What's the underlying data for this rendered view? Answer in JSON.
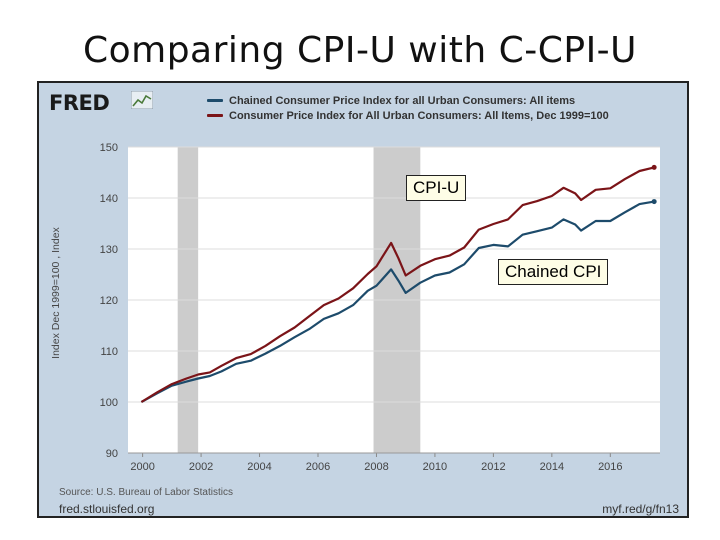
{
  "slide": {
    "title": "Comparing CPI-U with C-CPI-U"
  },
  "fred": {
    "logo_text": "FRED",
    "source": "Source: U.S. Bureau of Labor Statistics",
    "url_left": "fred.stlouisfed.org",
    "url_right": "myf.red/g/fn13"
  },
  "callouts": {
    "cpi_u": "CPI-U",
    "chained": "Chained CPI"
  },
  "colors": {
    "background": "#c5d4e3",
    "plot_bg": "#ffffff",
    "recession": "#cccccc",
    "series_chained": "#1d4b6b",
    "series_cpi": "#7b1418"
  },
  "chart_data": {
    "type": "line",
    "title": "",
    "xlabel": "",
    "ylabel": "Index Dec 1999=100 , Index",
    "xlim": [
      1999.5,
      2017.7
    ],
    "ylim": [
      90,
      150
    ],
    "xticks": [
      2000,
      2002,
      2004,
      2006,
      2008,
      2010,
      2012,
      2014,
      2016
    ],
    "yticks": [
      90,
      100,
      110,
      120,
      130,
      140,
      150
    ],
    "grid": true,
    "legend": "top",
    "recessions": [
      [
        2001.2,
        2001.9
      ],
      [
        2007.9,
        2009.5
      ]
    ],
    "x": [
      1999.96,
      2000.5,
      2001.0,
      2001.5,
      2001.9,
      2002.3,
      2002.7,
      2003.2,
      2003.7,
      2004.2,
      2004.7,
      2005.2,
      2005.7,
      2006.2,
      2006.7,
      2007.2,
      2007.7,
      2008.0,
      2008.5,
      2008.75,
      2009.0,
      2009.5,
      2010.0,
      2010.5,
      2011.0,
      2011.5,
      2012.0,
      2012.5,
      2013.0,
      2013.5,
      2014.0,
      2014.4,
      2014.8,
      2015.0,
      2015.5,
      2016.0,
      2016.5,
      2017.0,
      2017.5
    ],
    "series": [
      {
        "name": "Chained Consumer Price Index for all Urban Consumers: All items",
        "values": [
          100.0,
          101.7,
          103.2,
          104.0,
          104.6,
          105.1,
          106.0,
          107.5,
          108.1,
          109.5,
          111.0,
          112.7,
          114.3,
          116.3,
          117.4,
          119.0,
          121.8,
          122.8,
          126.0,
          123.8,
          121.4,
          123.4,
          124.8,
          125.4,
          127.0,
          130.2,
          130.8,
          130.5,
          132.8,
          133.5,
          134.2,
          135.8,
          134.8,
          133.6,
          135.5,
          135.5,
          137.2,
          138.8,
          139.3
        ]
      },
      {
        "name": "Consumer Price Index for All Urban Consumers: All Items, Dec 1999=100",
        "values": [
          100.0,
          101.9,
          103.5,
          104.6,
          105.4,
          105.8,
          107.1,
          108.6,
          109.4,
          111.0,
          112.9,
          114.6,
          116.8,
          119.0,
          120.3,
          122.3,
          125.1,
          126.6,
          131.2,
          128.2,
          124.8,
          126.7,
          128.0,
          128.7,
          130.3,
          133.8,
          134.9,
          135.8,
          138.6,
          139.4,
          140.4,
          142.0,
          140.9,
          139.6,
          141.6,
          141.9,
          143.7,
          145.3,
          146.0
        ]
      }
    ]
  }
}
